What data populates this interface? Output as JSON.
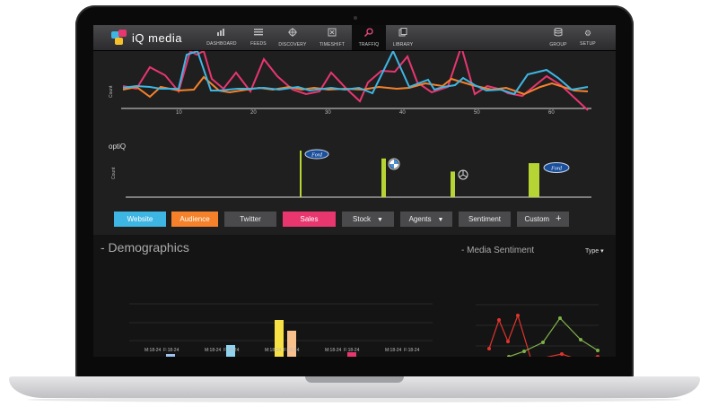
{
  "nav": {
    "app_name": "iQ media",
    "items": [
      {
        "label": "DASHBOARD",
        "icon": "bar-chart-icon"
      },
      {
        "label": "FEEDS",
        "icon": "list-icon"
      },
      {
        "label": "DISCOVERY",
        "icon": "compass-icon"
      },
      {
        "label": "TIMESHIFT",
        "icon": "clock-icon"
      },
      {
        "label": "TRAFFIQ",
        "icon": "magnifier-icon",
        "active": true
      },
      {
        "label": "LIBRARY",
        "icon": "library-icon"
      }
    ],
    "right_items": [
      {
        "label": "GROUP",
        "icon": "stack-icon"
      },
      {
        "label": "SETUP",
        "icon": "gear-icon"
      }
    ]
  },
  "colors": {
    "website": "#3eb6e4",
    "audience": "#f5822a",
    "sales": "#e8366f",
    "optiq_bar": "#b6d433",
    "sentiment_red": "#e0342d",
    "sentiment_green": "#7fb04a"
  },
  "traffic_chart": {
    "ylabel": "Count",
    "xticks": [
      "10",
      "20",
      "30",
      "40",
      "50",
      "60"
    ]
  },
  "optiq": {
    "title": "optiQ",
    "ylabel": "Count",
    "brands": [
      "Ford",
      "BMW",
      "Mercedes-Benz",
      "Ford"
    ],
    "heights": [
      1.0,
      0.83,
      0.55,
      0.73
    ]
  },
  "filters": {
    "website": "Website",
    "audience": "Audience",
    "twitter": "Twitter",
    "sales": "Sales",
    "stock": "Stock",
    "agents": "Agents",
    "sentiment": "Sentiment",
    "custom": "Custom"
  },
  "demographics": {
    "title": "- Demographics",
    "groups": [
      {
        "m": "M:18-24",
        "f": "F:18-24"
      },
      {
        "m": "M:18-24",
        "f": "F:18-24"
      },
      {
        "m": "M:18-24",
        "f": "F:18-24"
      },
      {
        "m": "M:18-24",
        "f": "F:18-24"
      },
      {
        "m": "M:18-24",
        "f": "F:18-24"
      }
    ]
  },
  "media_sentiment": {
    "title": "- Media Sentiment",
    "type_label": "Type"
  }
}
